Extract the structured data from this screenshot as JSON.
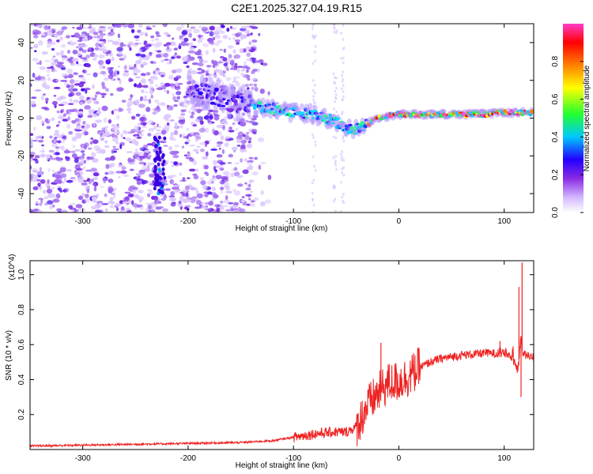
{
  "title": "C2E1.2025.327.04.19.R15",
  "chart_data": [
    {
      "type": "heatmap",
      "xlabel": "Height of straight line (km)",
      "ylabel": "Frequency (Hz)",
      "xlim": [
        -350,
        128
      ],
      "ylim": [
        -50,
        50
      ],
      "xticks": [
        -300,
        -200,
        -100,
        0,
        100
      ],
      "yticks": [
        -40,
        -20,
        0,
        20,
        40
      ],
      "colorbar": {
        "label": "Normalized spectral amplitude",
        "range": [
          0.0,
          1.0
        ],
        "ticks": [
          0.0,
          0.2,
          0.4,
          0.6,
          0.8
        ],
        "tick_labels": [
          "0.0",
          "0.2",
          "0.4",
          "0.6",
          "0.8"
        ],
        "colormap": [
          "#ffffff",
          "#dcc8ff",
          "#8a3cf0",
          "#2a00ff",
          "#00e0ff",
          "#20ff40",
          "#ffff00",
          "#ff8000",
          "#ff0000",
          "#ff40c0"
        ]
      },
      "ridge": {
        "x": [
          -200,
          -180,
          -160,
          -140,
          -120,
          -100,
          -80,
          -60,
          -50,
          -40,
          -30,
          -20,
          -10,
          0,
          20,
          50,
          80,
          100,
          110,
          125
        ],
        "y": [
          15,
          12,
          9,
          7,
          5,
          3,
          2,
          -2,
          -5,
          -6,
          -3,
          0,
          1,
          2,
          2,
          2,
          2,
          3,
          3,
          3
        ]
      }
    },
    {
      "type": "line",
      "xlabel": "Height of straight line (km)",
      "ylabel": "SNR (10 * v/v)",
      "y_multiplier": "(x10^4)",
      "xlim": [
        -350,
        128
      ],
      "ylim": [
        0,
        1.08
      ],
      "xticks": [
        -300,
        -200,
        -100,
        0,
        100
      ],
      "yticks": [
        0.2,
        0.4,
        0.6,
        0.8,
        1.0
      ],
      "series_color": "#ee2222",
      "envelope": {
        "x": [
          -350,
          -300,
          -250,
          -200,
          -150,
          -120,
          -100,
          -80,
          -60,
          -50,
          -40,
          -30,
          -20,
          -10,
          0,
          10,
          20,
          30,
          40,
          50,
          60,
          80,
          100,
          105,
          110,
          113,
          116,
          118,
          120,
          128
        ],
        "y": [
          0.02,
          0.025,
          0.03,
          0.035,
          0.04,
          0.05,
          0.07,
          0.09,
          0.1,
          0.1,
          0.13,
          0.25,
          0.32,
          0.38,
          0.39,
          0.42,
          0.47,
          0.5,
          0.52,
          0.53,
          0.54,
          0.55,
          0.55,
          0.54,
          0.5,
          0.45,
          0.65,
          0.55,
          0.54,
          0.53
        ]
      },
      "spikes": [
        {
          "x": -17,
          "y": 0.61
        },
        {
          "x": 114,
          "y": 0.93
        },
        {
          "x": 116,
          "y": 0.3
        },
        {
          "x": 117,
          "y": 1.07
        },
        {
          "x": 96,
          "y": 0.62
        }
      ]
    }
  ]
}
